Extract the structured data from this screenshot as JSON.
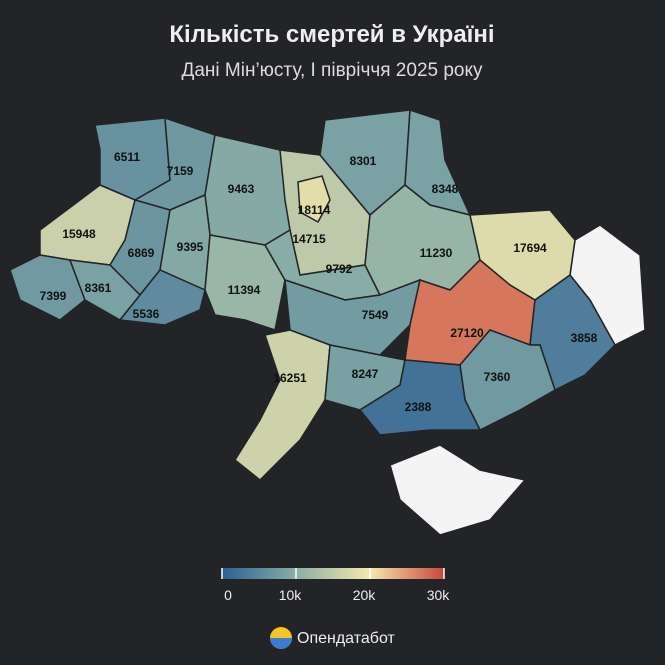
{
  "chart_data": {
    "type": "choropleth",
    "title": "Кількість смертей в Україні",
    "subtitle": "Дані Мін’юсту, I півріччя 2025 року",
    "values": [
      6511,
      7159,
      9463,
      14715,
      18114,
      8301,
      8348,
      15948,
      6869,
      9395,
      7399,
      8361,
      5536,
      11394,
      9792,
      11230,
      17694,
      7549,
      27120,
      3858,
      7360,
      16251,
      8247,
      2388
    ],
    "clim": [
      0,
      30000
    ],
    "cticks": [
      0,
      {
        "value": 10000,
        "label": "10k"
      },
      {
        "value": 20000,
        "label": "20k"
      },
      {
        "value": 30000,
        "label": "30k"
      }
    ],
    "colors": [
      "#2b5f94",
      "#8aaea6",
      "#f6e8ac",
      "#c9483c"
    ],
    "no_data_color": "#f4f4f4",
    "source": "Опендатабот"
  }
}
